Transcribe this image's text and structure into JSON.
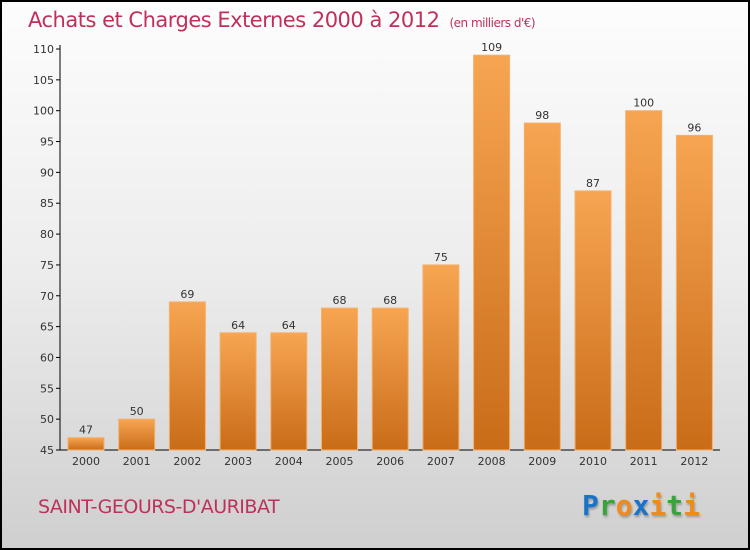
{
  "chart_data": {
    "type": "bar",
    "title": "Achats et Charges Externes 2000 à 2012",
    "subtitle": "(en milliers d'€)",
    "categories": [
      "2000",
      "2001",
      "2002",
      "2003",
      "2004",
      "2005",
      "2006",
      "2007",
      "2008",
      "2009",
      "2010",
      "2011",
      "2012"
    ],
    "values": [
      47,
      50,
      69,
      64,
      64,
      68,
      68,
      75,
      109,
      98,
      87,
      100,
      96
    ],
    "ylim": [
      45,
      110
    ],
    "yticks": [
      45,
      50,
      55,
      60,
      65,
      70,
      75,
      80,
      85,
      90,
      95,
      100,
      105,
      110
    ],
    "xlabel": "",
    "ylabel": "",
    "bar_color": "#e8892e"
  },
  "city": "SAINT-GEOURS-D'AURIBAT",
  "logo": {
    "letters": [
      "P",
      "r",
      "o",
      "x",
      "i",
      "t",
      "i"
    ],
    "colors": [
      "#1a73c9",
      "#3aa43a",
      "#f08a1c",
      "#1a73c9",
      "#f08a1c",
      "#3aa43a",
      "#f08a1c"
    ]
  }
}
